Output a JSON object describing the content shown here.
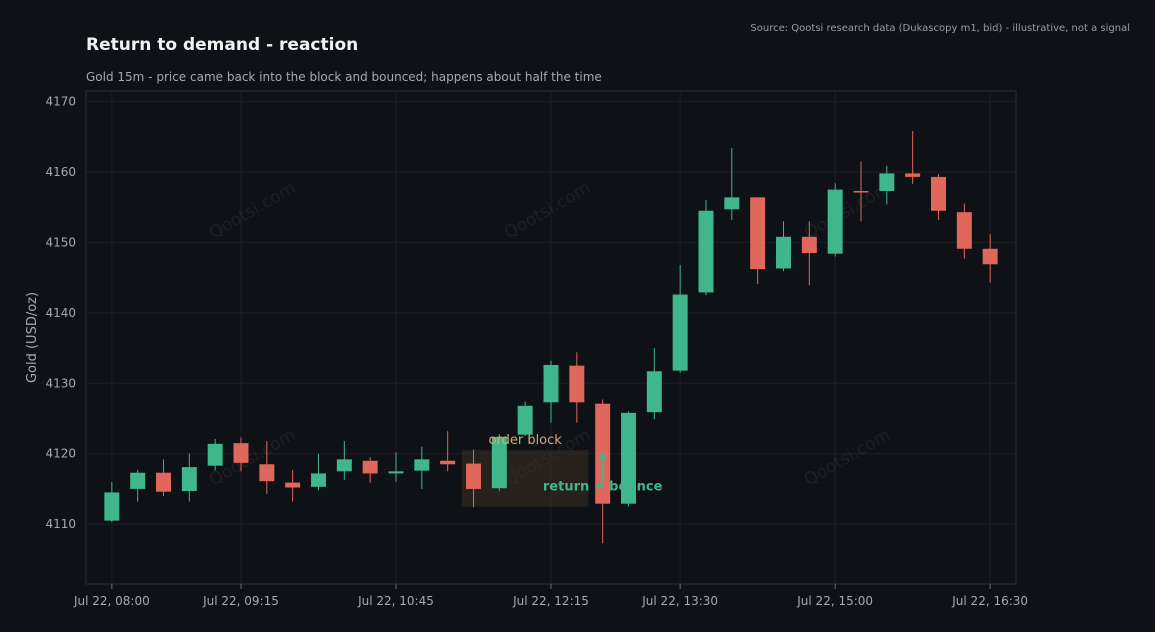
{
  "title": "Return to demand - reaction",
  "subtitle": "Gold 15m - price came back into the block and bounced; happens about half the time",
  "source": "Source: Qootsi research data (Dukascopy m1, bid) - illustrative, not a signal",
  "watermark": "Qootsi.com",
  "colors": {
    "background": "#0e1116",
    "up": "#3fb68b",
    "down": "#e0675c",
    "grid": "#1c2027",
    "axis_text": "#a7a9ad",
    "zone_fill": "#3a2f24",
    "zone_label": "#d9a870",
    "bounce": "#3fb68b"
  },
  "chart_data": {
    "type": "candlestick",
    "ylabel": "Gold (USD/oz)",
    "xlabel": "",
    "ylim": [
      4101.5,
      4171.5
    ],
    "yticks": [
      4110,
      4120,
      4130,
      4140,
      4150,
      4160,
      4170
    ],
    "xlim": [
      "Jul 22, 07:45",
      "Jul 22, 16:45"
    ],
    "xticks": [
      "Jul 22, 08:00",
      "Jul 22, 09:15",
      "Jul 22, 10:45",
      "Jul 22, 12:15",
      "Jul 22, 13:30",
      "Jul 22, 15:00",
      "Jul 22, 16:30"
    ],
    "candles": [
      {
        "t": "Jul 22, 08:00",
        "o": 4110.5,
        "h": 4116.0,
        "l": 4110.3,
        "c": 4114.5
      },
      {
        "t": "Jul 22, 08:15",
        "o": 4115.0,
        "h": 4117.7,
        "l": 4113.2,
        "c": 4117.3
      },
      {
        "t": "Jul 22, 08:30",
        "o": 4117.3,
        "h": 4119.2,
        "l": 4114.0,
        "c": 4114.6
      },
      {
        "t": "Jul 22, 08:45",
        "o": 4114.7,
        "h": 4120.0,
        "l": 4113.2,
        "c": 4118.1
      },
      {
        "t": "Jul 22, 09:00",
        "o": 4118.3,
        "h": 4122.1,
        "l": 4117.6,
        "c": 4121.4
      },
      {
        "t": "Jul 22, 09:15",
        "o": 4121.5,
        "h": 4122.3,
        "l": 4117.5,
        "c": 4118.7
      },
      {
        "t": "Jul 22, 09:30",
        "o": 4118.5,
        "h": 4121.8,
        "l": 4114.3,
        "c": 4116.1
      },
      {
        "t": "Jul 22, 09:45",
        "o": 4115.9,
        "h": 4117.7,
        "l": 4113.2,
        "c": 4115.2
      },
      {
        "t": "Jul 22, 10:00",
        "o": 4115.3,
        "h": 4120.0,
        "l": 4114.8,
        "c": 4117.2
      },
      {
        "t": "Jul 22, 10:15",
        "o": 4117.5,
        "h": 4121.8,
        "l": 4116.3,
        "c": 4119.2
      },
      {
        "t": "Jul 22, 10:30",
        "o": 4119.0,
        "h": 4119.5,
        "l": 4115.9,
        "c": 4117.2
      },
      {
        "t": "Jul 22, 10:45",
        "o": 4117.2,
        "h": 4120.2,
        "l": 4116.0,
        "c": 4117.5
      },
      {
        "t": "Jul 22, 11:00",
        "o": 4117.6,
        "h": 4121.0,
        "l": 4115.0,
        "c": 4119.2
      },
      {
        "t": "Jul 22, 11:15",
        "o": 4119.0,
        "h": 4123.2,
        "l": 4117.5,
        "c": 4118.5
      },
      {
        "t": "Jul 22, 11:30",
        "o": 4118.6,
        "h": 4120.6,
        "l": 4112.4,
        "c": 4115.0
      },
      {
        "t": "Jul 22, 11:45",
        "o": 4115.1,
        "h": 4122.8,
        "l": 4114.7,
        "c": 4122.4
      },
      {
        "t": "Jul 22, 12:00",
        "o": 4122.7,
        "h": 4127.4,
        "l": 4122.5,
        "c": 4126.8
      },
      {
        "t": "Jul 22, 12:15",
        "o": 4127.3,
        "h": 4133.2,
        "l": 4124.4,
        "c": 4132.6
      },
      {
        "t": "Jul 22, 12:30",
        "o": 4132.5,
        "h": 4134.4,
        "l": 4124.4,
        "c": 4127.3
      },
      {
        "t": "Jul 22, 12:45",
        "o": 4127.1,
        "h": 4127.7,
        "l": 4107.3,
        "c": 4112.9
      },
      {
        "t": "Jul 22, 13:00",
        "o": 4112.9,
        "h": 4126.0,
        "l": 4112.5,
        "c": 4125.8
      },
      {
        "t": "Jul 22, 13:15",
        "o": 4125.9,
        "h": 4135.0,
        "l": 4124.9,
        "c": 4131.7
      },
      {
        "t": "Jul 22, 13:30",
        "o": 4131.8,
        "h": 4146.8,
        "l": 4131.5,
        "c": 4142.6
      },
      {
        "t": "Jul 22, 13:45",
        "o": 4142.9,
        "h": 4156.0,
        "l": 4142.5,
        "c": 4154.5
      },
      {
        "t": "Jul 22, 14:00",
        "o": 4154.7,
        "h": 4163.4,
        "l": 4153.2,
        "c": 4156.4
      },
      {
        "t": "Jul 22, 14:15",
        "o": 4156.4,
        "h": 4156.4,
        "l": 4144.1,
        "c": 4146.2
      },
      {
        "t": "Jul 22, 14:30",
        "o": 4146.3,
        "h": 4153.0,
        "l": 4145.9,
        "c": 4150.8
      },
      {
        "t": "Jul 22, 14:45",
        "o": 4150.8,
        "h": 4153.0,
        "l": 4143.9,
        "c": 4148.5
      },
      {
        "t": "Jul 22, 15:00",
        "o": 4148.4,
        "h": 4158.4,
        "l": 4148.0,
        "c": 4157.5
      },
      {
        "t": "Jul 22, 15:15",
        "o": 4157.3,
        "h": 4161.5,
        "l": 4153.0,
        "c": 4157.2
      },
      {
        "t": "Jul 22, 15:30",
        "o": 4157.3,
        "h": 4160.9,
        "l": 4155.4,
        "c": 4159.8
      },
      {
        "t": "Jul 22, 15:45",
        "o": 4159.8,
        "h": 4165.8,
        "l": 4158.3,
        "c": 4159.3
      },
      {
        "t": "Jul 22, 16:00",
        "o": 4159.3,
        "h": 4159.7,
        "l": 4153.2,
        "c": 4154.5
      },
      {
        "t": "Jul 22, 16:15",
        "o": 4154.3,
        "h": 4155.5,
        "l": 4147.7,
        "c": 4149.1
      },
      {
        "t": "Jul 22, 16:30",
        "o": 4149.1,
        "h": 4151.2,
        "l": 4144.3,
        "c": 4146.9
      }
    ],
    "annotations": {
      "zone": {
        "label": "order block",
        "x_start": "Jul 22, 11:30",
        "x_end": "Jul 22, 12:30",
        "y_low": 4112.5,
        "y_high": 4120.5
      },
      "bounce": {
        "label": "return + bounce",
        "x": "Jul 22, 12:45",
        "y_from": 4115.5,
        "y_to": 4120.3
      }
    }
  }
}
